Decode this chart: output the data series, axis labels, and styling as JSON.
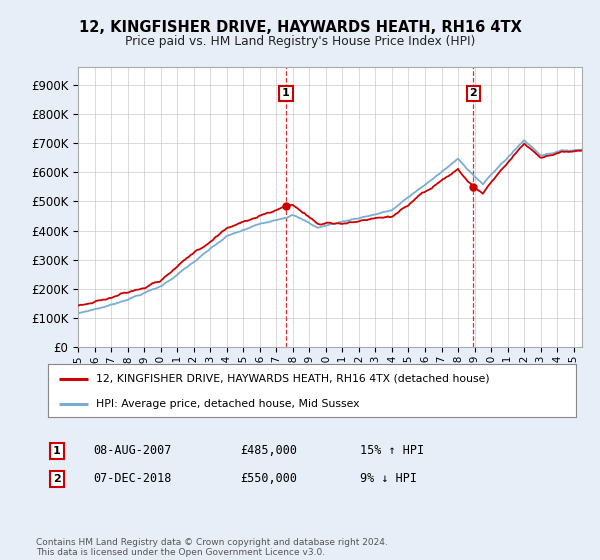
{
  "title": "12, KINGFISHER DRIVE, HAYWARDS HEATH, RH16 4TX",
  "subtitle": "Price paid vs. HM Land Registry's House Price Index (HPI)",
  "ylabel_ticks": [
    "£0",
    "£100K",
    "£200K",
    "£300K",
    "£400K",
    "£500K",
    "£600K",
    "£700K",
    "£800K",
    "£900K"
  ],
  "ytick_values": [
    0,
    100000,
    200000,
    300000,
    400000,
    500000,
    600000,
    700000,
    800000,
    900000
  ],
  "ylim": [
    0,
    960000
  ],
  "xlim_start": 1995.0,
  "xlim_end": 2025.5,
  "legend_line1": "12, KINGFISHER DRIVE, HAYWARDS HEATH, RH16 4TX (detached house)",
  "legend_line2": "HPI: Average price, detached house, Mid Sussex",
  "sale1_date": "08-AUG-2007",
  "sale1_price": "£485,000",
  "sale1_hpi": "15% ↑ HPI",
  "sale1_x": 2007.58,
  "sale1_y": 485000,
  "sale2_date": "07-DEC-2018",
  "sale2_price": "£550,000",
  "sale2_hpi": "9% ↓ HPI",
  "sale2_x": 2018.92,
  "sale2_y": 550000,
  "footer": "Contains HM Land Registry data © Crown copyright and database right 2024.\nThis data is licensed under the Open Government Licence v3.0.",
  "line_color_red": "#cc0000",
  "line_color_blue": "#7aadd4",
  "background_color": "#e8eef8",
  "plot_bg": "#ffffff",
  "grid_color": "#cccccc",
  "xticks": [
    1995,
    1996,
    1997,
    1998,
    1999,
    2000,
    2001,
    2002,
    2003,
    2004,
    2005,
    2006,
    2007,
    2008,
    2009,
    2010,
    2011,
    2012,
    2013,
    2014,
    2015,
    2016,
    2017,
    2018,
    2019,
    2020,
    2021,
    2022,
    2023,
    2024,
    2025
  ]
}
